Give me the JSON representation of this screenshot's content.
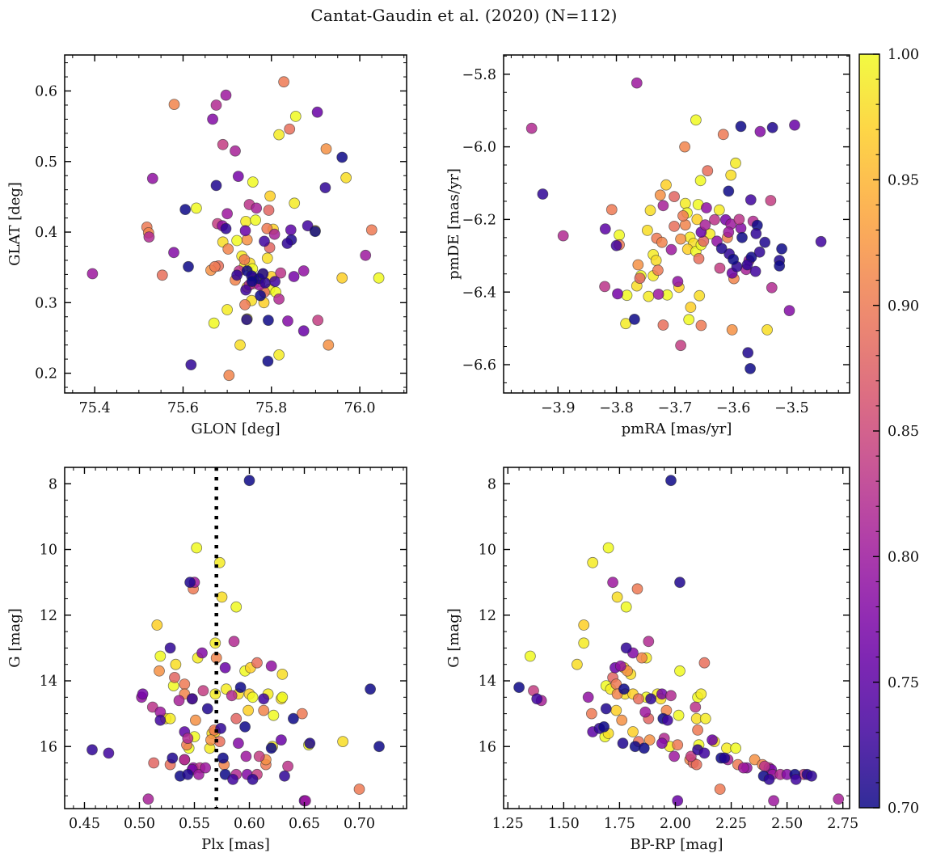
{
  "title": "Cantat-Gaudin et al. (2020) (N=112)",
  "chart_data": {
    "type": "scatter",
    "title": "Cantat-Gaudin et al. (2020) (N=112)",
    "n_stars": 112,
    "colormap": "plasma",
    "color_field": "prob",
    "color_range": [
      0.7,
      1.0
    ],
    "legend_position": "right-colorbar",
    "grid": false,
    "colorbar": {
      "tick_values": [
        1.0,
        0.95,
        0.9,
        0.85,
        0.8,
        0.75,
        0.7
      ],
      "tick_labels": [
        "1.00",
        "0.95",
        "0.90",
        "0.85",
        "0.80",
        "0.75",
        "0.70"
      ],
      "minor_step": 0.01
    },
    "panels": [
      {
        "id": "glon-glat",
        "xfield": "glon",
        "yfield": "glat",
        "xlabel": "GLON [deg]",
        "ylabel": "GLAT [deg]",
        "xlim": [
          75.332,
          76.106
        ],
        "ylim": [
          0.172,
          0.651
        ],
        "invert_y": false,
        "xticks": {
          "values": [
            75.4,
            75.6,
            75.8,
            76.0
          ],
          "labels": [
            "75.4",
            "75.6",
            "75.8",
            "76.0"
          ],
          "minor_step": 0.05
        },
        "yticks": {
          "values": [
            0.2,
            0.3,
            0.4,
            0.5,
            0.6
          ],
          "labels": [
            "0.2",
            "0.3",
            "0.4",
            "0.5",
            "0.6"
          ],
          "minor_step": 0.02
        }
      },
      {
        "id": "pmra-pmde",
        "xfield": "pmra",
        "yfield": "pmde",
        "xlabel": "pmRA [mas/yr]",
        "ylabel": "pmDE [mas/yr]",
        "xlim": [
          -3.993,
          -3.401
        ],
        "ylim": [
          -6.678,
          -5.747
        ],
        "invert_y": false,
        "xticks": {
          "values": [
            -3.9,
            -3.8,
            -3.7,
            -3.6,
            -3.5
          ],
          "labels": [
            "−3.9",
            "−3.8",
            "−3.7",
            "−3.6",
            "−3.5"
          ],
          "minor_step": 0.02
        },
        "yticks": {
          "values": [
            -6.6,
            -6.4,
            -6.2,
            -6.0,
            -5.8
          ],
          "labels": [
            "−6.6",
            "−6.4",
            "−6.2",
            "−6.0",
            "−5.8"
          ],
          "minor_step": 0.05
        }
      },
      {
        "id": "plx-g",
        "xfield": "plx",
        "yfield": "gmag",
        "xlabel": "Plx [mas]",
        "ylabel": "G [mag]",
        "xlim": [
          0.432,
          0.743
        ],
        "ylim": [
          7.5,
          17.89
        ],
        "invert_y": true,
        "vline": {
          "value": 0.57,
          "color": "#000000",
          "style": "dotted"
        },
        "xticks": {
          "values": [
            0.45,
            0.5,
            0.55,
            0.6,
            0.65,
            0.7
          ],
          "labels": [
            "0.45",
            "0.50",
            "0.55",
            "0.60",
            "0.65",
            "0.70"
          ],
          "minor_step": 0.01
        },
        "yticks": {
          "values": [
            8,
            10,
            12,
            14,
            16
          ],
          "labels": [
            "8",
            "10",
            "12",
            "14",
            "16"
          ],
          "minor_step": 0.5
        }
      },
      {
        "id": "bprp-g",
        "xfield": "bprp",
        "yfield": "gmag",
        "xlabel": "BP-RP [mag]",
        "ylabel": "G [mag]",
        "xlim": [
          1.231,
          2.78
        ],
        "ylim": [
          7.5,
          17.89
        ],
        "invert_y": true,
        "xticks": {
          "values": [
            1.25,
            1.5,
            1.75,
            2.0,
            2.25,
            2.5,
            2.75
          ],
          "labels": [
            "1.25",
            "1.50",
            "1.75",
            "2.00",
            "2.25",
            "2.50",
            "2.75"
          ],
          "minor_step": 0.05
        },
        "yticks": {
          "values": [
            8,
            10,
            12,
            14,
            16
          ],
          "labels": [
            "8",
            "10",
            "12",
            "14",
            "16"
          ],
          "minor_step": 0.5
        }
      }
    ],
    "stars": {
      "prob": [
        1.0,
        0.99,
        0.98,
        1.0,
        0.97,
        0.99,
        1.0,
        0.98,
        0.99,
        1.0,
        0.97,
        0.98,
        1.0,
        0.99,
        0.98,
        0.97,
        1.0,
        0.99,
        0.98,
        1.0,
        0.99,
        0.97,
        1.0,
        0.98,
        0.99,
        1.0,
        0.98,
        0.97,
        0.99,
        1.0,
        0.98,
        0.99,
        1.0,
        0.9,
        0.91,
        0.89,
        0.92,
        0.88,
        0.9,
        0.91,
        0.89,
        0.9,
        0.92,
        0.88,
        0.91,
        0.9,
        0.89,
        0.92,
        0.9,
        0.91,
        0.88,
        0.89,
        0.9,
        0.92,
        0.91,
        0.9,
        0.8,
        0.82,
        0.78,
        0.76,
        0.84,
        0.81,
        0.79,
        0.77,
        0.83,
        0.8,
        0.75,
        0.82,
        0.78,
        0.8,
        0.84,
        0.76,
        0.81,
        0.79,
        0.83,
        0.77,
        0.8,
        0.82,
        0.78,
        0.84,
        0.76,
        0.8,
        0.81,
        0.79,
        0.83,
        0.8,
        0.82,
        0.7,
        0.71,
        0.72,
        0.7,
        0.73,
        0.7,
        0.72,
        0.71,
        0.7,
        0.73,
        0.72,
        0.7,
        0.71,
        0.7,
        0.72,
        0.73,
        0.7,
        0.71,
        0.7,
        0.72,
        0.7,
        0.71,
        0.73,
        0.7,
        0.72
      ],
      "glon": [
        75.855,
        75.817,
        75.969,
        75.758,
        75.797,
        75.852,
        75.63,
        75.899,
        75.742,
        75.764,
        75.804,
        75.69,
        75.722,
        75.733,
        75.791,
        75.96,
        76.043,
        75.739,
        75.751,
        75.757,
        75.78,
        75.8,
        75.774,
        75.745,
        75.796,
        75.81,
        75.755,
        75.783,
        75.7,
        75.745,
        75.729,
        75.817,
        75.67,
        75.828,
        75.58,
        75.841,
        75.924,
        75.794,
        75.518,
        75.522,
        75.553,
        75.79,
        75.745,
        75.796,
        75.702,
        75.739,
        75.68,
        75.663,
        75.672,
        75.718,
        75.76,
        75.784,
        75.74,
        75.929,
        75.704,
        76.027,
        75.697,
        75.675,
        75.667,
        75.904,
        75.69,
        75.718,
        75.531,
        75.725,
        75.75,
        75.7,
        75.844,
        75.523,
        75.579,
        75.395,
        75.678,
        75.741,
        75.807,
        75.873,
        75.821,
        75.851,
        75.773,
        75.817,
        75.837,
        75.905,
        75.873,
        76.013,
        75.766,
        75.689,
        75.727,
        75.759,
        75.75,
        75.96,
        75.675,
        75.922,
        75.605,
        75.882,
        75.612,
        75.697,
        75.845,
        75.899,
        75.784,
        75.836,
        75.745,
        75.755,
        75.772,
        75.786,
        75.742,
        75.775,
        75.744,
        75.793,
        75.618,
        75.792,
        75.781,
        75.808,
        75.756,
        75.722
      ],
      "glat": [
        0.564,
        0.538,
        0.477,
        0.471,
        0.451,
        0.441,
        0.434,
        0.402,
        0.415,
        0.417,
        0.404,
        0.386,
        0.388,
        0.366,
        0.363,
        0.335,
        0.335,
        0.352,
        0.356,
        0.348,
        0.34,
        0.337,
        0.33,
        0.322,
        0.319,
        0.315,
        0.303,
        0.3,
        0.29,
        0.277,
        0.24,
        0.226,
        0.271,
        0.613,
        0.581,
        0.546,
        0.518,
        0.431,
        0.407,
        0.399,
        0.339,
        0.405,
        0.389,
        0.378,
        0.376,
        0.361,
        0.352,
        0.346,
        0.351,
        0.332,
        0.327,
        0.315,
        0.297,
        0.24,
        0.197,
        0.403,
        0.594,
        0.58,
        0.56,
        0.57,
        0.524,
        0.515,
        0.476,
        0.479,
        0.439,
        0.426,
        0.403,
        0.393,
        0.371,
        0.341,
        0.412,
        0.402,
        0.397,
        0.345,
        0.342,
        0.337,
        0.325,
        0.305,
        0.274,
        0.275,
        0.26,
        0.367,
        0.434,
        0.409,
        0.345,
        0.335,
        0.325,
        0.506,
        0.466,
        0.463,
        0.432,
        0.409,
        0.351,
        0.405,
        0.389,
        0.401,
        0.387,
        0.384,
        0.345,
        0.338,
        0.334,
        0.328,
        0.318,
        0.31,
        0.276,
        0.275,
        0.212,
        0.217,
        0.341,
        0.33,
        0.33,
        0.339
      ],
      "pmra": [
        -3.664,
        -3.596,
        -3.604,
        -3.656,
        -3.715,
        -3.682,
        -3.66,
        -3.742,
        -3.624,
        -3.679,
        -3.662,
        -3.747,
        -3.795,
        -3.674,
        -3.668,
        -3.678,
        -3.664,
        -3.737,
        -3.732,
        -3.758,
        -3.737,
        -3.693,
        -3.782,
        -3.765,
        -3.745,
        -3.713,
        -3.658,
        -3.673,
        -3.784,
        -3.676,
        -3.542,
        -3.64,
        -3.655,
        -3.617,
        -3.683,
        -3.644,
        -3.725,
        -3.701,
        -3.808,
        -3.682,
        -3.701,
        -3.731,
        -3.69,
        -3.651,
        -3.722,
        -3.795,
        -3.659,
        -3.763,
        -3.729,
        -3.599,
        -3.76,
        -3.72,
        -3.655,
        -3.602,
        -3.61,
        -3.686,
        -3.765,
        -3.945,
        -3.554,
        -3.495,
        -3.536,
        -3.72,
        -3.646,
        -3.613,
        -3.632,
        -3.604,
        -3.819,
        -3.891,
        -3.587,
        -3.573,
        -3.623,
        -3.602,
        -3.578,
        -3.695,
        -3.82,
        -3.798,
        -3.728,
        -3.534,
        -3.504,
        -3.69,
        -3.655,
        -3.706,
        -3.648,
        -3.628,
        -3.59,
        -3.608,
        -3.566,
        -3.587,
        -3.533,
        -3.926,
        -3.608,
        -3.57,
        -3.559,
        -3.561,
        -3.546,
        -3.517,
        -3.45,
        -3.607,
        -3.569,
        -3.521,
        -3.521,
        -3.576,
        -3.562,
        -3.769,
        -3.575,
        -3.571,
        -3.594,
        -3.6,
        -3.62,
        -3.8,
        -3.585,
        -3.555
      ],
      "pmde": [
        -5.926,
        -6.045,
        -6.078,
        -6.093,
        -6.105,
        -6.156,
        -6.159,
        -6.175,
        -6.174,
        -6.182,
        -6.2,
        -6.23,
        -6.243,
        -6.249,
        -6.266,
        -6.282,
        -6.288,
        -6.297,
        -6.313,
        -6.355,
        -6.355,
        -6.387,
        -6.409,
        -6.383,
        -6.412,
        -6.408,
        -6.41,
        -6.442,
        -6.487,
        -6.476,
        -6.504,
        -6.24,
        -6.27,
        -5.966,
        -6.0,
        -6.066,
        -6.133,
        -6.137,
        -6.173,
        -6.215,
        -6.219,
        -6.252,
        -6.254,
        -6.26,
        -6.263,
        -6.27,
        -6.308,
        -6.325,
        -6.34,
        -6.363,
        -6.362,
        -6.491,
        -6.492,
        -6.504,
        -6.25,
        -6.19,
        -5.824,
        -5.949,
        -5.958,
        -5.94,
        -6.148,
        -6.162,
        -6.168,
        -6.201,
        -6.201,
        -6.213,
        -6.226,
        -6.245,
        -6.224,
        -6.313,
        -6.334,
        -6.348,
        -6.338,
        -6.371,
        -6.385,
        -6.405,
        -6.406,
        -6.388,
        -6.451,
        -6.547,
        -6.235,
        -6.283,
        -6.215,
        -6.26,
        -6.2,
        -6.235,
        -6.205,
        -5.944,
        -5.947,
        -6.13,
        -6.122,
        -6.146,
        -6.216,
        -6.239,
        -6.263,
        -6.281,
        -6.261,
        -6.295,
        -6.304,
        -6.313,
        -6.328,
        -6.325,
        -6.343,
        -6.475,
        -6.567,
        -6.611,
        -6.33,
        -6.31,
        -6.28,
        -6.272,
        -6.25,
        -6.29
      ],
      "plx": [
        0.552,
        0.573,
        0.575,
        0.588,
        0.516,
        0.569,
        0.519,
        0.533,
        0.553,
        0.596,
        0.601,
        0.63,
        0.531,
        0.579,
        0.59,
        0.6,
        0.603,
        0.617,
        0.629,
        0.63,
        0.569,
        0.599,
        0.622,
        0.524,
        0.528,
        0.55,
        0.566,
        0.569,
        0.621,
        0.654,
        0.685,
        0.564,
        0.545,
        0.549,
        0.57,
        0.607,
        0.518,
        0.532,
        0.541,
        0.541,
        0.548,
        0.648,
        0.551,
        0.588,
        0.613,
        0.568,
        0.573,
        0.565,
        0.543,
        0.541,
        0.513,
        0.528,
        0.615,
        0.615,
        0.577,
        0.7,
        0.55,
        0.586,
        0.557,
        0.578,
        0.558,
        0.536,
        0.502,
        0.503,
        0.512,
        0.519,
        0.541,
        0.544,
        0.59,
        0.597,
        0.609,
        0.629,
        0.541,
        0.549,
        0.555,
        0.548,
        0.554,
        0.588,
        0.598,
        0.607,
        0.65,
        0.651,
        0.508,
        0.62,
        0.635,
        0.56,
        0.584,
        0.6,
        0.546,
        0.528,
        0.592,
        0.613,
        0.71,
        0.548,
        0.562,
        0.64,
        0.519,
        0.574,
        0.596,
        0.655,
        0.718,
        0.457,
        0.472,
        0.576,
        0.53,
        0.537,
        0.603,
        0.578,
        0.544,
        0.585,
        0.62,
        0.632
      ],
      "gmag": [
        9.95,
        10.4,
        11.45,
        11.75,
        12.3,
        12.85,
        13.25,
        13.5,
        13.3,
        13.7,
        13.6,
        13.8,
        14.15,
        14.25,
        14.4,
        14.4,
        14.5,
        14.4,
        14.55,
        14.5,
        14.4,
        14.9,
        15.05,
        15.15,
        15.15,
        15.7,
        15.6,
        15.55,
        16.0,
        15.95,
        15.85,
        16.05,
        16.05,
        11.2,
        13.3,
        13.45,
        13.7,
        13.9,
        14.1,
        14.4,
        14.55,
        15.0,
        15.2,
        15.15,
        14.9,
        15.5,
        15.85,
        15.8,
        15.95,
        16.4,
        16.5,
        16.55,
        16.55,
        16.4,
        16.55,
        17.3,
        11.0,
        12.8,
        13.15,
        13.6,
        14.3,
        14.6,
        14.5,
        14.4,
        14.8,
        14.95,
        15.55,
        15.75,
        15.9,
        16.3,
        16.3,
        15.8,
        16.4,
        16.65,
        16.65,
        16.7,
        16.85,
        16.85,
        16.85,
        16.85,
        17.65,
        17.65,
        17.6,
        13.55,
        16.6,
        16.65,
        14.45,
        7.9,
        11.0,
        13.0,
        14.2,
        14.55,
        14.25,
        14.55,
        14.85,
        15.15,
        15.2,
        15.45,
        15.4,
        15.9,
        16.0,
        16.1,
        16.2,
        16.35,
        16.35,
        16.9,
        17.0,
        16.85,
        16.85,
        17.0,
        16.05,
        16.9
      ],
      "bprp": [
        1.7,
        1.63,
        1.74,
        1.78,
        1.59,
        1.59,
        1.35,
        1.56,
        1.87,
        2.02,
        1.77,
        1.8,
        1.69,
        1.71,
        1.775,
        1.81,
        1.87,
        1.92,
        1.935,
        2.1,
        2.115,
        1.735,
        2.015,
        2.095,
        2.135,
        1.685,
        1.7,
        1.81,
        1.975,
        2.105,
        2.175,
        2.23,
        2.27,
        1.83,
        1.85,
        2.13,
        1.785,
        1.72,
        1.735,
        1.74,
        1.835,
        1.625,
        1.76,
        1.88,
        1.96,
        2.1,
        1.835,
        1.885,
        2.01,
        2.065,
        2.08,
        2.095,
        2.28,
        2.355,
        2.39,
        2.2,
        1.72,
        1.88,
        1.81,
        1.73,
        1.365,
        1.4,
        1.61,
        1.94,
        2.09,
        1.865,
        1.63,
        1.95,
        1.94,
        1.995,
        2.07,
        2.165,
        2.235,
        2.32,
        2.42,
        2.43,
        2.435,
        2.47,
        2.5,
        2.575,
        2.01,
        2.44,
        2.73,
        1.755,
        2.4,
        2.305,
        1.98,
        1.98,
        2.02,
        1.78,
        1.3,
        1.38,
        1.77,
        1.89,
        1.69,
        1.945,
        1.965,
        1.66,
        1.68,
        1.765,
        1.82,
        2.1,
        2.13,
        2.205,
        2.22,
        2.395,
        2.42,
        2.535,
        2.59,
        2.54,
        1.86,
        2.61
      ]
    },
    "style": {
      "background": "#ffffff",
      "axis_color": "#000000",
      "marker_edge_color": "#2a2a2a",
      "marker_alpha": 0.85,
      "marker_radius": 6.5,
      "colormap_rgb": [
        [
          13,
          8,
          135
        ],
        [
          70,
          3,
          159
        ],
        [
          114,
          1,
          168
        ],
        [
          156,
          23,
          158
        ],
        [
          189,
          55,
          134
        ],
        [
          216,
          87,
          107
        ],
        [
          237,
          121,
          83
        ],
        [
          251,
          159,
          58
        ],
        [
          254,
          202,
          39
        ],
        [
          240,
          249,
          33
        ]
      ]
    }
  }
}
